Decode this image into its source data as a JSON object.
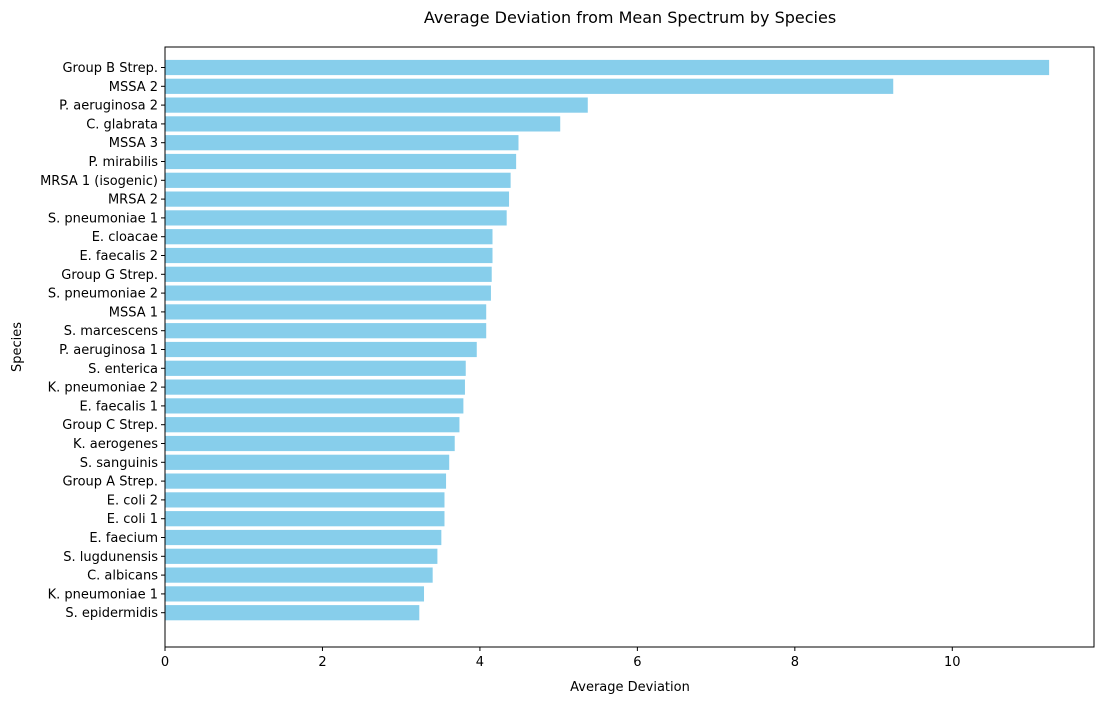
{
  "chart_data": {
    "type": "bar",
    "orientation": "horizontal",
    "title": "Average Deviation from Mean Spectrum by Species",
    "xlabel": "Average Deviation",
    "ylabel": "Species",
    "xlim": [
      0,
      11.8
    ],
    "xticks": [
      0,
      2,
      4,
      6,
      8,
      10
    ],
    "grid": false,
    "legend": "none",
    "bar_color": "#87CEEB",
    "categories": [
      "Group B Strep.",
      "MSSA 2",
      "P. aeruginosa 2",
      "C. glabrata",
      "MSSA 3",
      "P. mirabilis",
      "MRSA 1 (isogenic)",
      "MRSA 2",
      "S. pneumoniae 1",
      "E. cloacae",
      "E. faecalis 2",
      "Group G Strep.",
      "S. pneumoniae 2",
      "MSSA 1",
      "S. marcescens",
      "P. aeruginosa 1",
      "S. enterica",
      "K. pneumoniae 2",
      "E. faecalis 1",
      "Group C Strep.",
      "K. aerogenes",
      "S. sanguinis",
      "Group A Strep.",
      "E. coli 2",
      "E. coli 1",
      "E. faecium",
      "S. lugdunensis",
      "C. albicans",
      "K. pneumoniae 1",
      "S. epidermidis"
    ],
    "values": [
      11.23,
      9.25,
      5.37,
      5.02,
      4.49,
      4.46,
      4.39,
      4.37,
      4.34,
      4.16,
      4.16,
      4.15,
      4.14,
      4.08,
      4.08,
      3.96,
      3.82,
      3.81,
      3.79,
      3.74,
      3.68,
      3.61,
      3.57,
      3.55,
      3.55,
      3.51,
      3.46,
      3.4,
      3.29,
      3.23
    ]
  }
}
